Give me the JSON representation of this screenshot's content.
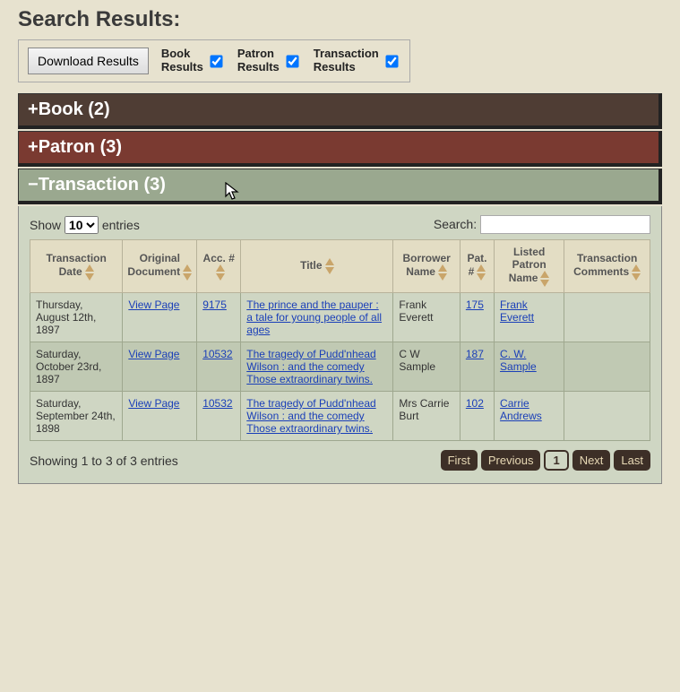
{
  "title": "Search Results:",
  "controls": {
    "download_label": "Download Results",
    "checkboxes": [
      {
        "label": "Book\nResults",
        "checked": true
      },
      {
        "label": "Patron\nResults",
        "checked": true
      },
      {
        "label": "Transaction\nResults",
        "checked": true
      }
    ]
  },
  "accordions": {
    "book": {
      "sign": "+",
      "label": "Book (2)"
    },
    "patron": {
      "sign": "+",
      "label": "Patron (3)"
    },
    "transaction": {
      "sign": "−",
      "label": "Transaction (3)"
    }
  },
  "datatable": {
    "show_prefix": "Show",
    "show_value": "10",
    "show_suffix": "entries",
    "search_label": "Search:",
    "search_value": "",
    "columns": [
      "Transaction Date",
      "Original Document",
      "Acc. #",
      "Title",
      "Borrower Name",
      "Pat. #",
      "Listed Patron Name",
      "Transaction Comments"
    ],
    "rows": [
      {
        "date": "Thursday, August 12th, 1897",
        "doc": "View Page",
        "acc": "9175",
        "title": "The prince and the pauper : a tale for young people of all ages",
        "borrower": "Frank Everett",
        "pat": "175",
        "listed": "Frank Everett",
        "comments": ""
      },
      {
        "date": "Saturday, October 23rd, 1897",
        "doc": "View Page",
        "acc": "10532",
        "title": "The tragedy of Pudd'nhead Wilson : and the comedy Those extraordinary twins.",
        "borrower": "C W Sample",
        "pat": "187",
        "listed": "C. W. Sample",
        "comments": ""
      },
      {
        "date": "Saturday, September 24th, 1898",
        "doc": "View Page",
        "acc": "10532",
        "title": "The tragedy of Pudd'nhead Wilson : and the comedy Those extraordinary twins.",
        "borrower": "Mrs Carrie Burt",
        "pat": "102",
        "listed": "Carrie Andrews",
        "comments": ""
      }
    ],
    "info": "Showing 1 to 3 of 3 entries",
    "pager": {
      "first": "First",
      "prev": "Previous",
      "page": "1",
      "next": "Next",
      "last": "Last"
    }
  },
  "colors": {
    "page_bg": "#e7e2cf",
    "book_bg": "#4f3d34",
    "patron_bg": "#7a3a31",
    "trans_bg": "#9aa88f",
    "link": "#1a3fb8",
    "arrow": "#c9a56a",
    "pager_bg": "#3d2f27"
  }
}
